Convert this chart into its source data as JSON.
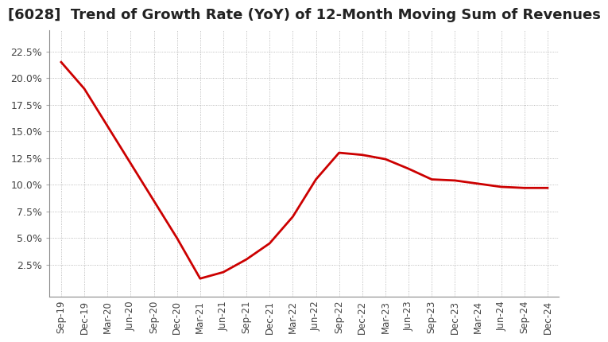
{
  "title": "[6028]  Trend of Growth Rate (YoY) of 12-Month Moving Sum of Revenues",
  "title_fontsize": 13,
  "line_color": "#cc0000",
  "background_color": "#ffffff",
  "plot_bg_color": "#ffffff",
  "grid_color": "#aaaaaa",
  "ylim": [
    -0.005,
    0.245
  ],
  "yticks": [
    0.025,
    0.05,
    0.075,
    0.1,
    0.125,
    0.15,
    0.175,
    0.2,
    0.225
  ],
  "x_labels": [
    "Sep-19",
    "Dec-19",
    "Mar-20",
    "Jun-20",
    "Sep-20",
    "Dec-20",
    "Mar-21",
    "Jun-21",
    "Sep-21",
    "Dec-21",
    "Mar-22",
    "Jun-22",
    "Sep-22",
    "Dec-22",
    "Mar-23",
    "Jun-23",
    "Sep-23",
    "Dec-23",
    "Mar-24",
    "Jun-24",
    "Sep-24",
    "Dec-24"
  ],
  "values": [
    0.215,
    0.19,
    0.155,
    0.12,
    0.085,
    0.05,
    0.012,
    0.018,
    0.03,
    0.045,
    0.07,
    0.105,
    0.13,
    0.128,
    0.124,
    0.115,
    0.105,
    0.104,
    0.101,
    0.098,
    0.097,
    0.097
  ]
}
